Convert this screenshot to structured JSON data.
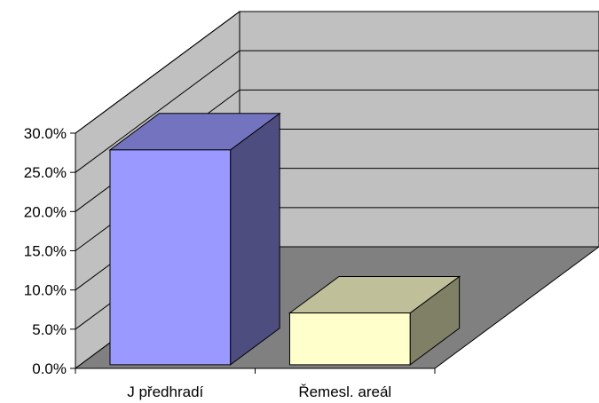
{
  "chart_data": {
    "type": "bar",
    "style": "3d-column",
    "categories": [
      "J předhradí",
      "Řemesl. areál"
    ],
    "values": [
      0.274,
      0.066
    ],
    "ylim": [
      0,
      0.3
    ],
    "yticks": [
      "0.0%",
      "5.0%",
      "10.0%",
      "15.0%",
      "20.0%",
      "25.0%",
      "30.0%"
    ],
    "grid": true,
    "legend": "none",
    "colors": {
      "bars": [
        "#9999ff",
        "#ffffcc"
      ],
      "wall": "#c0c0c0",
      "floor": "#808080",
      "axis": "#000000"
    }
  }
}
